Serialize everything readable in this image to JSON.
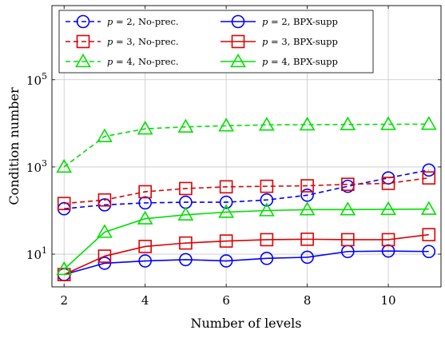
{
  "chart_data": {
    "type": "line",
    "title": "",
    "xlabel": "Number of levels",
    "ylabel": "Condition number",
    "x": [
      2,
      3,
      4,
      5,
      6,
      7,
      8,
      9,
      10,
      11
    ],
    "xlim": [
      1.7,
      11.3
    ],
    "ylim_log10": [
      0.25,
      6.7
    ],
    "y_scale": "log",
    "grid": true,
    "legend_position": "top-left",
    "x_ticks": [
      {
        "value": 2,
        "label": "2"
      },
      {
        "value": 4,
        "label": "4"
      },
      {
        "value": 6,
        "label": "6"
      },
      {
        "value": 8,
        "label": "8"
      },
      {
        "value": 10,
        "label": "10"
      }
    ],
    "y_ticks": [
      {
        "value": 10,
        "base": "10",
        "exp": "1"
      },
      {
        "value": 1000,
        "base": "10",
        "exp": "3"
      },
      {
        "value": 100000,
        "base": "10",
        "exp": "5"
      }
    ],
    "series": [
      {
        "name_prefix": "p",
        "name_suffix": " = 2, No-prec.",
        "color": "#0000ff",
        "marker": "circle",
        "dash": true,
        "values": [
          110,
          135,
          150,
          155,
          155,
          175,
          225,
          360,
          560,
          850
        ]
      },
      {
        "name_prefix": "p",
        "name_suffix": " = 2, BPX-supp",
        "color": "#0000ff",
        "marker": "circle",
        "dash": false,
        "values": [
          3.4,
          6.2,
          7,
          7.5,
          7,
          8,
          8.5,
          11.5,
          11.8,
          11.5
        ]
      },
      {
        "name_prefix": "p",
        "name_suffix": " = 3, No-prec.",
        "color": "#e00000",
        "marker": "square",
        "dash": true,
        "values": [
          145,
          175,
          270,
          320,
          350,
          360,
          370,
          400,
          420,
          560
        ]
      },
      {
        "name_prefix": "p",
        "name_suffix": " = 3, BPX-supp",
        "color": "#e00000",
        "marker": "square",
        "dash": false,
        "values": [
          3.4,
          9,
          15,
          18,
          20,
          21.5,
          22,
          21.5,
          21.5,
          28
        ]
      },
      {
        "name_prefix": "p",
        "name_suffix": " = 4, No-prec.",
        "color": "#00e000",
        "marker": "triangle",
        "dash": true,
        "values": [
          1000,
          5000,
          7500,
          8300,
          8800,
          9200,
          9300,
          9400,
          9500,
          9600
        ]
      },
      {
        "name_prefix": "p",
        "name_suffix": " = 4, BPX-supp",
        "color": "#00e000",
        "marker": "triangle",
        "dash": false,
        "values": [
          4.5,
          32,
          65,
          80,
          92,
          100,
          105,
          105,
          107,
          108
        ]
      }
    ]
  }
}
